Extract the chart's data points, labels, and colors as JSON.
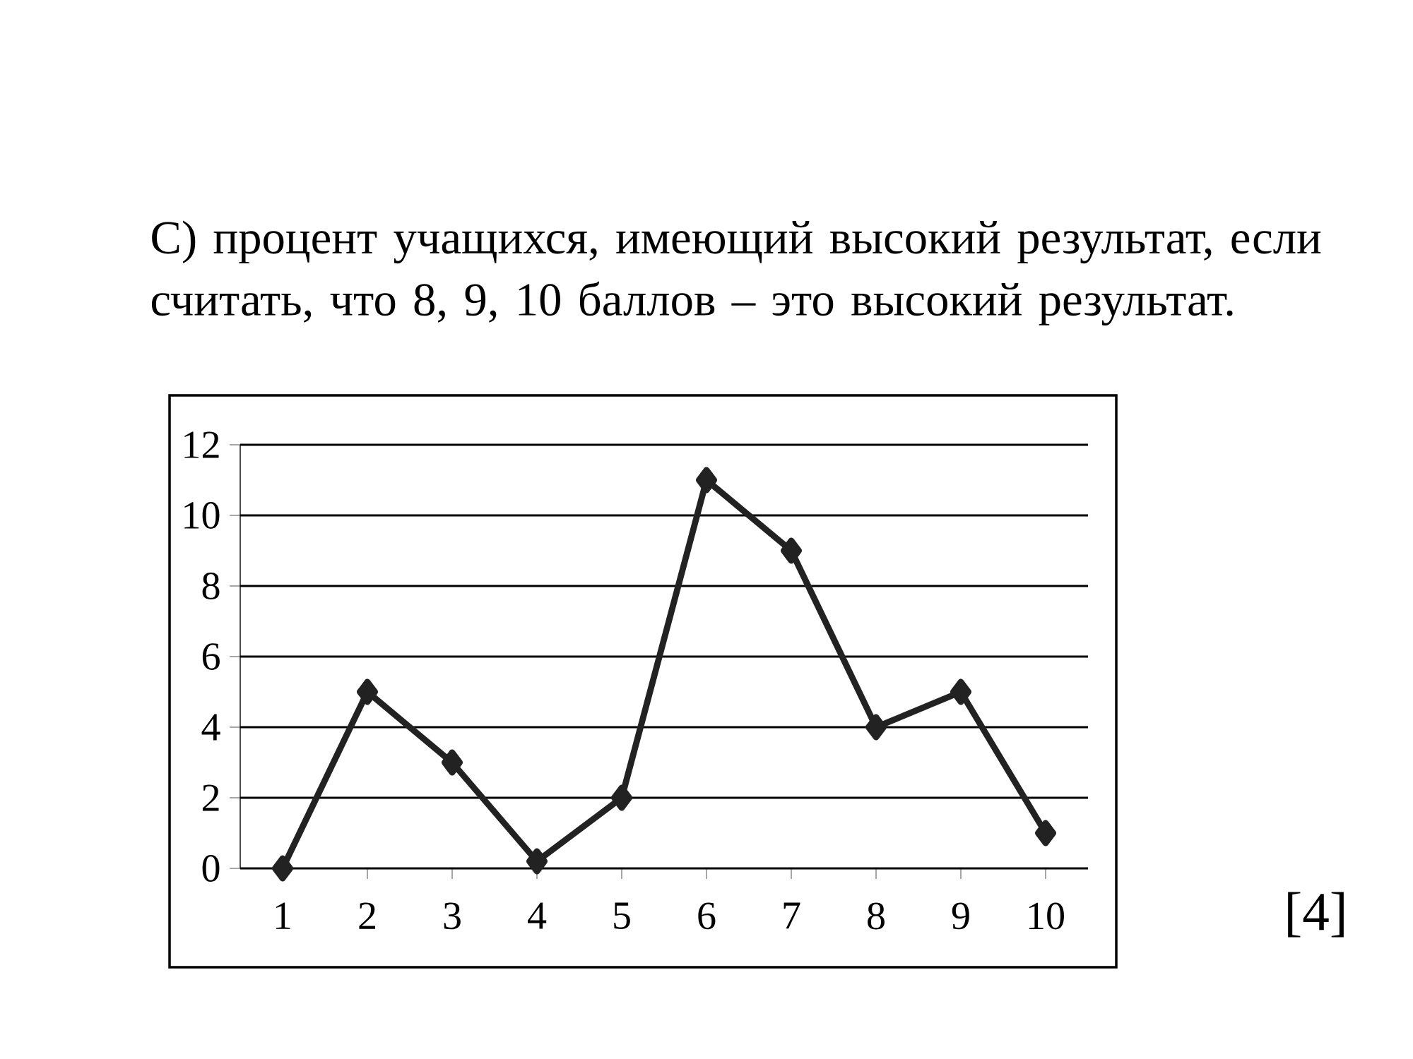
{
  "chart_data": {
    "type": "line",
    "title": "С) процент учащихся, имеющий высокий результат, если считать, что 8, 9, 10 баллов – это высокий результат.",
    "categories": [
      "1",
      "2",
      "3",
      "4",
      "5",
      "6",
      "7",
      "8",
      "9",
      "10"
    ],
    "values": [
      0,
      5,
      3,
      0.2,
      2,
      11,
      9,
      4,
      5,
      1
    ],
    "color": "#222222",
    "ylim": [
      0,
      12
    ],
    "yticks": [
      0,
      2,
      4,
      6,
      8,
      10,
      12
    ],
    "grid": "y",
    "marker": "diamond",
    "line_style": "solid",
    "annotations": [
      "[4]"
    ]
  }
}
